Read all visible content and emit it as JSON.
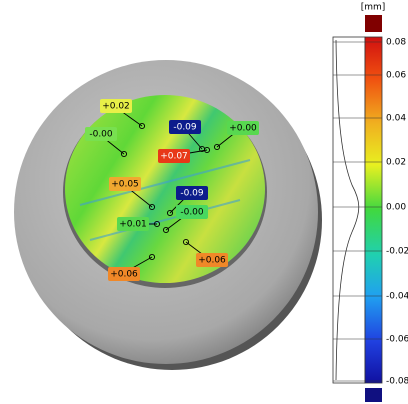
{
  "scale": {
    "unit": "[mm]",
    "ticks": [
      "0.08",
      "0.06",
      "0.04",
      "0.02",
      "0.00",
      "-0.02",
      "-0.04",
      "-0.06",
      "-0.08"
    ]
  },
  "annotations": [
    "+0.02",
    "-0.00",
    "-0.09",
    "+0.00",
    "+0.07",
    "+0.05",
    "-0.09",
    "-0.00",
    "+0.01",
    "+0.06",
    "+0.06"
  ]
}
